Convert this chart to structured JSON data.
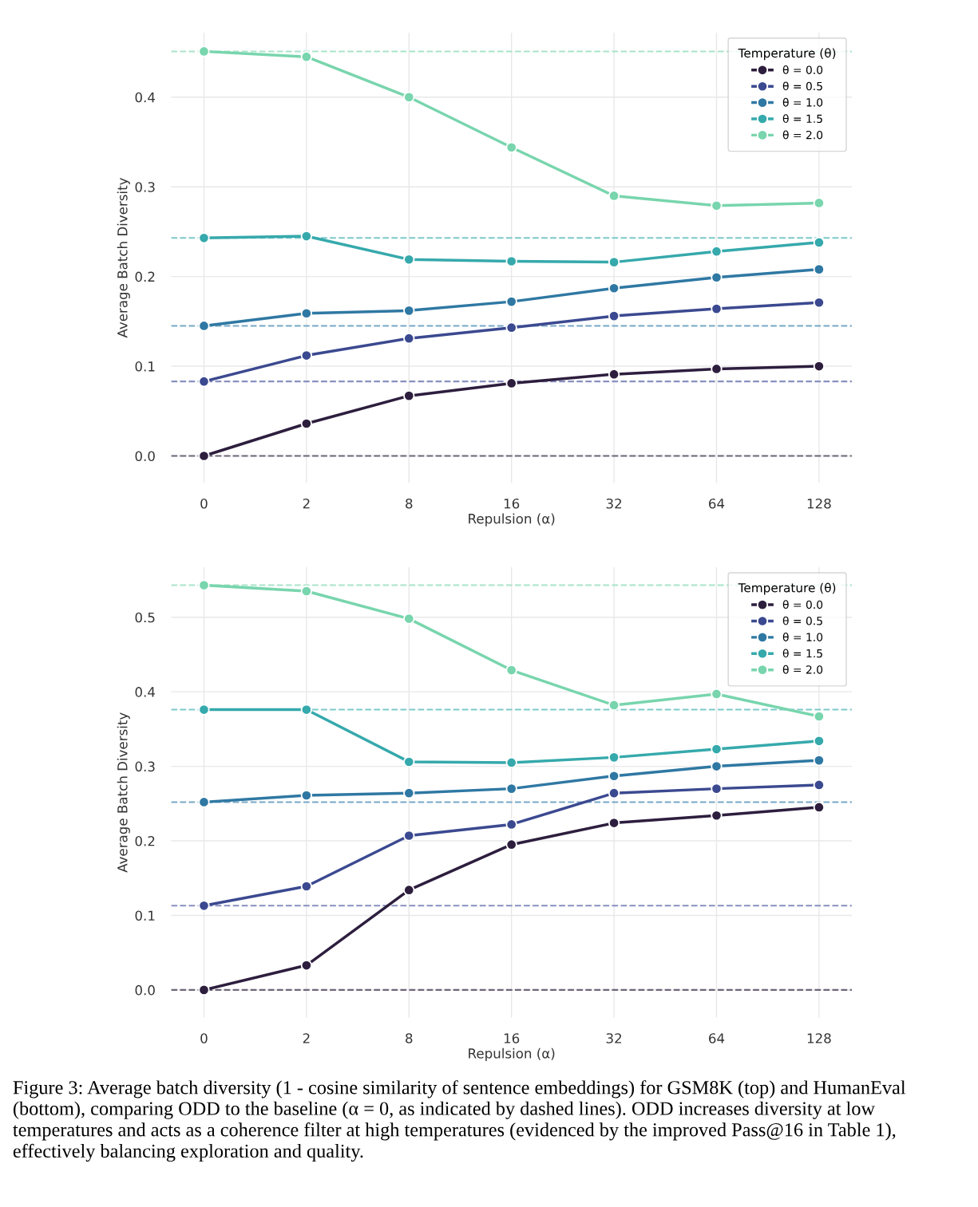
{
  "chart_data": [
    {
      "type": "line",
      "xlabel": "Repulsion (α)",
      "ylabel": "Average Batch Diversity",
      "legend_title": "Temperature (θ)",
      "categories": [
        "0",
        "2",
        "8",
        "16",
        "32",
        "64",
        "128"
      ],
      "series": [
        {
          "name": "θ = 0.0",
          "color": "#2d1e3e",
          "values": [
            0.0,
            0.036,
            0.067,
            0.081,
            0.091,
            0.097,
            0.1
          ]
        },
        {
          "name": "θ = 0.5",
          "color": "#3b4990",
          "values": [
            0.083,
            0.112,
            0.131,
            0.143,
            0.156,
            0.164,
            0.171
          ]
        },
        {
          "name": "θ = 1.0",
          "color": "#2f78a3",
          "values": [
            0.145,
            0.159,
            0.162,
            0.172,
            0.187,
            0.199,
            0.208
          ]
        },
        {
          "name": "θ = 1.5",
          "color": "#36a9ac",
          "values": [
            0.243,
            0.245,
            0.219,
            0.217,
            0.216,
            0.228,
            0.238
          ]
        },
        {
          "name": "θ = 2.0",
          "color": "#78d5ad",
          "values": [
            0.451,
            0.445,
            0.4,
            0.344,
            0.29,
            0.279,
            0.282
          ]
        }
      ],
      "ref_lines": [
        {
          "axis": "y",
          "value": 0.0,
          "color": "#6e6678",
          "line_style": "dashed"
        },
        {
          "axis": "y",
          "value": 0.083,
          "color": "#8990c0",
          "line_style": "dashed"
        },
        {
          "axis": "y",
          "value": 0.145,
          "color": "#78a7c6",
          "line_style": "dashed"
        },
        {
          "axis": "y",
          "value": 0.243,
          "color": "#7cc9cb",
          "line_style": "dashed"
        },
        {
          "axis": "y",
          "value": 0.451,
          "color": "#a9e4ca",
          "line_style": "dashed"
        }
      ],
      "ylim": [
        -0.03,
        0.472
      ],
      "yticks": [
        {
          "value": 0.0,
          "label": "0.0"
        },
        0.1,
        0.2,
        0.3,
        0.4
      ],
      "grid": true,
      "legend": "top right",
      "marker": "circle",
      "line_style": "solid"
    },
    {
      "type": "line",
      "xlabel": "Repulsion (α)",
      "ylabel": "Average Batch Diversity",
      "legend_title": "Temperature (θ)",
      "categories": [
        "0",
        "2",
        "8",
        "16",
        "32",
        "64",
        "128"
      ],
      "series": [
        {
          "name": "θ = 0.0",
          "color": "#2d1e3e",
          "values": [
            0.0,
            0.033,
            0.134,
            0.195,
            0.224,
            0.234,
            0.245
          ]
        },
        {
          "name": "θ = 0.5",
          "color": "#3b4990",
          "values": [
            0.113,
            0.139,
            0.207,
            0.222,
            0.264,
            0.27,
            0.275
          ]
        },
        {
          "name": "θ = 1.0",
          "color": "#2f78a3",
          "values": [
            0.252,
            0.261,
            0.264,
            0.27,
            0.287,
            0.3,
            0.308
          ]
        },
        {
          "name": "θ = 1.5",
          "color": "#36a9ac",
          "values": [
            0.376,
            0.376,
            0.306,
            0.305,
            0.312,
            0.323,
            0.334
          ]
        },
        {
          "name": "θ = 2.0",
          "color": "#78d5ad",
          "values": [
            0.543,
            0.535,
            0.498,
            0.429,
            0.382,
            0.397,
            0.367
          ]
        }
      ],
      "ref_lines": [
        {
          "axis": "y",
          "value": 0.0,
          "color": "#6e6678",
          "line_style": "dashed"
        },
        {
          "axis": "y",
          "value": 0.113,
          "color": "#8990c0",
          "line_style": "dashed"
        },
        {
          "axis": "y",
          "value": 0.252,
          "color": "#78a7c6",
          "line_style": "dashed"
        },
        {
          "axis": "y",
          "value": 0.376,
          "color": "#7cc9cb",
          "line_style": "dashed"
        },
        {
          "axis": "y",
          "value": 0.543,
          "color": "#a9e4ca",
          "line_style": "dashed"
        }
      ],
      "ylim": [
        -0.037,
        0.567
      ],
      "yticks": [
        {
          "value": 0.0,
          "label": "0.0"
        },
        0.1,
        0.2,
        0.3,
        0.4,
        0.5
      ],
      "grid": true,
      "legend": "top right",
      "marker": "circle",
      "line_style": "solid",
      "annotations": [
        "Figure 3: Average batch diversity (1 - cosine similarity of sentence embeddings) for GSM8K (top) and HumanEval (bottom), comparing ODD to the baseline (α = 0, as indicated by dashed lines). ODD increases diversity at low temperatures and acts as a coherence filter at high temperatures (evidenced by the improved Pass@16 in Table 1), effectively balancing exploration and quality."
      ]
    }
  ]
}
